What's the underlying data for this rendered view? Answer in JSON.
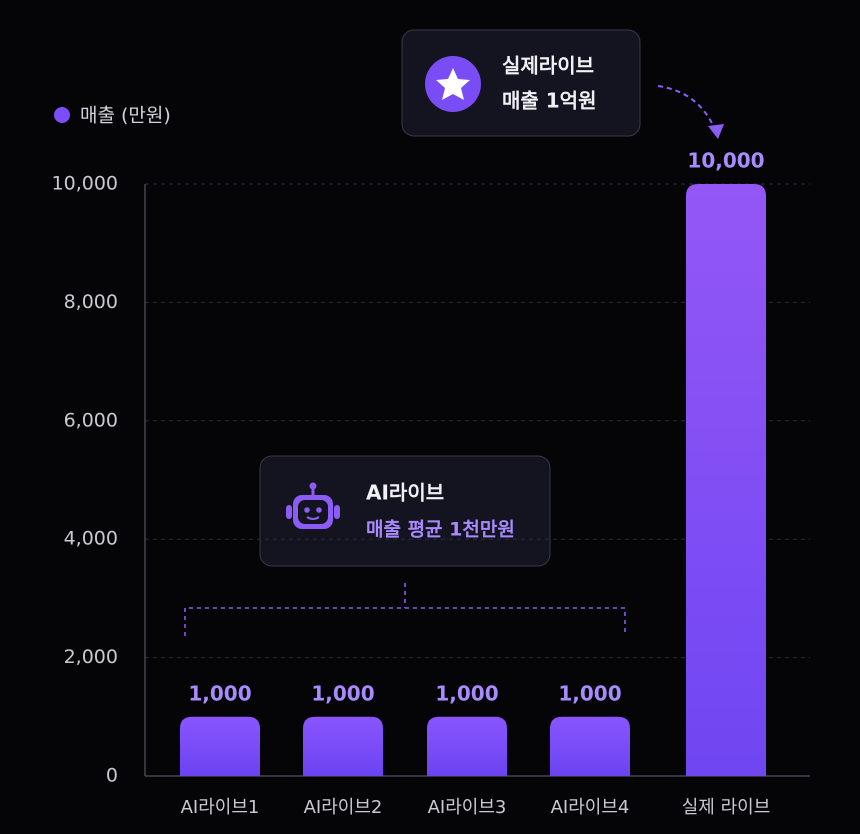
{
  "chart_data": {
    "type": "bar",
    "categories": [
      "AI라이브1",
      "AI라이브2",
      "AI라이브3",
      "AI라이브4",
      "실제 라이브"
    ],
    "series": [
      {
        "name": "매출 (만원)",
        "color": "#7c4dff",
        "values": [
          1000,
          1000,
          1000,
          1000,
          10000
        ],
        "value_labels": [
          "1,000",
          "1,000",
          "1,000",
          "1,000",
          "10,000"
        ]
      }
    ],
    "ylim": [
      0,
      10000
    ],
    "yticks": [
      0,
      {
        "value": 2000,
        "label": "2,000"
      },
      {
        "value": 4000,
        "label": "4,000"
      },
      {
        "value": 6000,
        "label": "6,000"
      },
      {
        "value": 8000,
        "label": "8,000"
      },
      {
        "value": 10000,
        "label": "10,000"
      }
    ],
    "grid": true,
    "legend": "top-left",
    "annotations": [
      {
        "title": "실제라이브",
        "text": "매출 1억원"
      },
      {
        "title": "AI라이브",
        "text": "매출 평균 1천만원"
      }
    ]
  }
}
